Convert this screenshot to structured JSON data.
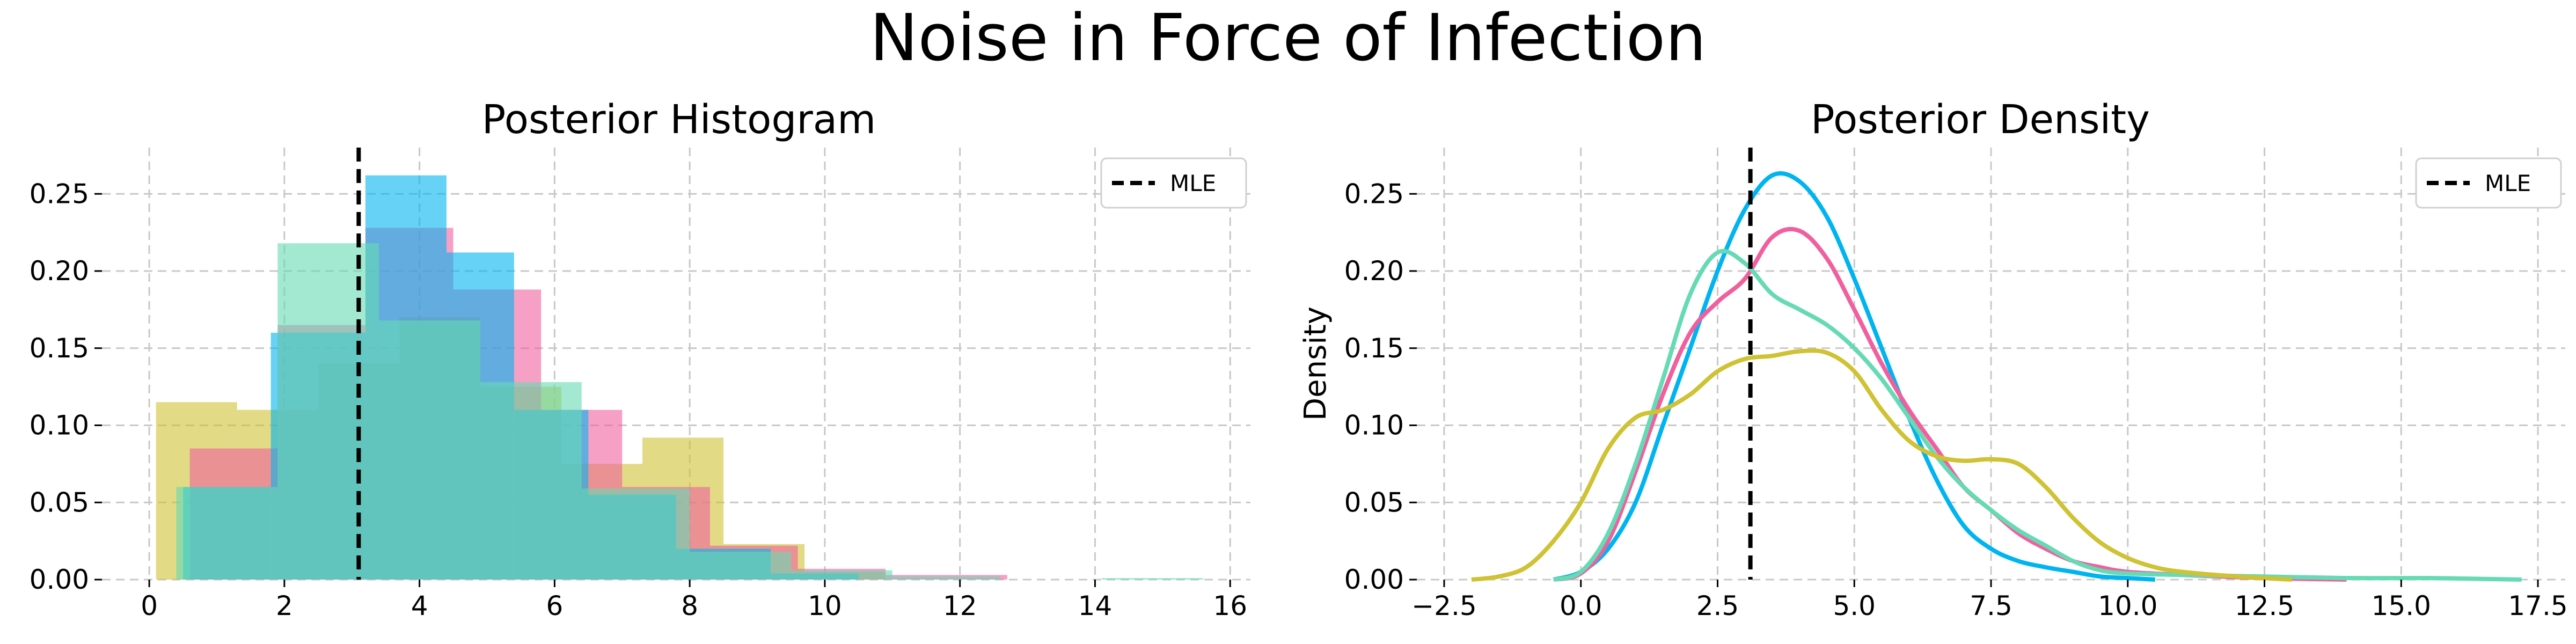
{
  "figure": {
    "title": "Noise in Force of Infection"
  },
  "colors": {
    "blue": "#00b4f0",
    "pink": "#f0609e",
    "mint": "#66dab4",
    "olive": "#cfc233",
    "mle": "#000000"
  },
  "chart_data": [
    {
      "type": "histogram",
      "title": "Posterior Histogram",
      "xlabel": "",
      "ylabel": "",
      "xlim": [
        -0.7,
        16.3
      ],
      "ylim": [
        0,
        0.28
      ],
      "xticks": [
        "0",
        "2",
        "4",
        "6",
        "8",
        "10",
        "12",
        "14",
        "16"
      ],
      "yticks": [
        "0.00",
        "0.05",
        "0.10",
        "0.15",
        "0.20",
        "0.25"
      ],
      "grid": true,
      "legend": {
        "position": "top-right",
        "entries": [
          "MLE"
        ]
      },
      "mle": 3.1,
      "series": [
        {
          "color": "olive",
          "bins": [
            [
              0.1,
              1.3,
              0.115
            ],
            [
              1.3,
              2.5,
              0.11
            ],
            [
              2.5,
              3.7,
              0.14
            ],
            [
              3.7,
              4.9,
              0.17
            ],
            [
              4.9,
              6.1,
              0.125
            ],
            [
              6.1,
              7.3,
              0.075
            ],
            [
              7.3,
              8.5,
              0.092
            ],
            [
              8.5,
              9.7,
              0.023
            ],
            [
              9.7,
              10.9,
              0.005
            ]
          ]
        },
        {
          "color": "pink",
          "bins": [
            [
              0.6,
              1.9,
              0.085
            ],
            [
              1.9,
              3.2,
              0.165
            ],
            [
              3.2,
              4.5,
              0.228
            ],
            [
              4.5,
              5.8,
              0.188
            ],
            [
              5.8,
              7.0,
              0.11
            ],
            [
              7.0,
              8.3,
              0.06
            ],
            [
              8.3,
              9.6,
              0.022
            ],
            [
              9.6,
              10.9,
              0.007
            ],
            [
              10.9,
              12.7,
              0.003
            ]
          ]
        },
        {
          "color": "blue",
          "bins": [
            [
              0.5,
              1.8,
              0.06
            ],
            [
              1.8,
              3.2,
              0.16
            ],
            [
              3.2,
              4.4,
              0.262
            ],
            [
              4.4,
              5.4,
              0.212
            ],
            [
              5.4,
              6.5,
              0.11
            ],
            [
              6.5,
              7.8,
              0.055
            ],
            [
              7.8,
              9.2,
              0.02
            ],
            [
              9.2,
              10.5,
              0.004
            ]
          ]
        },
        {
          "color": "mint",
          "bins": [
            [
              0.4,
              1.9,
              0.06
            ],
            [
              1.9,
              3.4,
              0.218
            ],
            [
              3.4,
              4.9,
              0.168
            ],
            [
              4.9,
              6.4,
              0.128
            ],
            [
              6.4,
              8.0,
              0.059
            ],
            [
              8.0,
              9.5,
              0.018
            ],
            [
              9.5,
              11.0,
              0.006
            ],
            [
              11.0,
              12.6,
              0.002
            ],
            [
              14.1,
              15.6,
              0.001
            ]
          ]
        }
      ]
    },
    {
      "type": "line",
      "title": "Posterior Density",
      "xlabel": "",
      "ylabel": "Density",
      "xlim": [
        -3.0,
        18.0
      ],
      "ylim": [
        0,
        0.28
      ],
      "xticks": [
        "−2.5",
        "0.0",
        "2.5",
        "5.0",
        "7.5",
        "10.0",
        "12.5",
        "15.0",
        "17.5"
      ],
      "yticks": [
        "0.00",
        "0.05",
        "0.10",
        "0.15",
        "0.20",
        "0.25"
      ],
      "grid": true,
      "legend": {
        "position": "top-right",
        "entries": [
          "MLE"
        ]
      },
      "mle": 3.1,
      "series": [
        {
          "color": "blue",
          "points": [
            [
              -0.5,
              0
            ],
            [
              0,
              0.005
            ],
            [
              0.5,
              0.02
            ],
            [
              1,
              0.05
            ],
            [
              1.5,
              0.1
            ],
            [
              2,
              0.15
            ],
            [
              2.5,
              0.2
            ],
            [
              3,
              0.24
            ],
            [
              3.5,
              0.262
            ],
            [
              4,
              0.258
            ],
            [
              4.5,
              0.235
            ],
            [
              5,
              0.195
            ],
            [
              5.5,
              0.15
            ],
            [
              6,
              0.105
            ],
            [
              6.5,
              0.065
            ],
            [
              7,
              0.035
            ],
            [
              7.5,
              0.02
            ],
            [
              8,
              0.012
            ],
            [
              8.5,
              0.008
            ],
            [
              9,
              0.005
            ],
            [
              9.5,
              0.002
            ],
            [
              10,
              0.001
            ],
            [
              10.5,
              0
            ]
          ]
        },
        {
          "color": "pink",
          "points": [
            [
              -0.5,
              0
            ],
            [
              0,
              0.004
            ],
            [
              0.5,
              0.025
            ],
            [
              1,
              0.07
            ],
            [
              1.5,
              0.12
            ],
            [
              2,
              0.16
            ],
            [
              2.5,
              0.18
            ],
            [
              3,
              0.195
            ],
            [
              3.5,
              0.222
            ],
            [
              4,
              0.226
            ],
            [
              4.5,
              0.208
            ],
            [
              5,
              0.175
            ],
            [
              5.5,
              0.14
            ],
            [
              6,
              0.11
            ],
            [
              6.5,
              0.085
            ],
            [
              7,
              0.06
            ],
            [
              7.5,
              0.045
            ],
            [
              8,
              0.03
            ],
            [
              8.5,
              0.02
            ],
            [
              9,
              0.012
            ],
            [
              9.5,
              0.008
            ],
            [
              10,
              0.005
            ],
            [
              11,
              0.003
            ],
            [
              12.5,
              0.001
            ],
            [
              14,
              0
            ]
          ]
        },
        {
          "color": "mint",
          "points": [
            [
              -0.5,
              0
            ],
            [
              0,
              0.005
            ],
            [
              0.5,
              0.03
            ],
            [
              1,
              0.075
            ],
            [
              1.5,
              0.13
            ],
            [
              2,
              0.185
            ],
            [
              2.5,
              0.212
            ],
            [
              3,
              0.205
            ],
            [
              3.5,
              0.185
            ],
            [
              4,
              0.175
            ],
            [
              4.5,
              0.165
            ],
            [
              5,
              0.15
            ],
            [
              5.5,
              0.13
            ],
            [
              6,
              0.105
            ],
            [
              6.5,
              0.08
            ],
            [
              7,
              0.06
            ],
            [
              7.5,
              0.045
            ],
            [
              8,
              0.032
            ],
            [
              8.5,
              0.022
            ],
            [
              9,
              0.012
            ],
            [
              9.5,
              0.006
            ],
            [
              10,
              0.004
            ],
            [
              11,
              0.003
            ],
            [
              12.5,
              0.002
            ],
            [
              14,
              0.001
            ],
            [
              15.5,
              0.001
            ],
            [
              17.2,
              0
            ]
          ]
        },
        {
          "color": "olive",
          "points": [
            [
              -2,
              0
            ],
            [
              -1.5,
              0.002
            ],
            [
              -1,
              0.008
            ],
            [
              -0.5,
              0.025
            ],
            [
              0,
              0.05
            ],
            [
              0.5,
              0.085
            ],
            [
              1,
              0.105
            ],
            [
              1.5,
              0.11
            ],
            [
              2,
              0.12
            ],
            [
              2.5,
              0.135
            ],
            [
              3,
              0.143
            ],
            [
              3.5,
              0.145
            ],
            [
              4,
              0.148
            ],
            [
              4.5,
              0.147
            ],
            [
              5,
              0.135
            ],
            [
              5.5,
              0.11
            ],
            [
              6,
              0.09
            ],
            [
              6.5,
              0.08
            ],
            [
              7,
              0.077
            ],
            [
              7.5,
              0.078
            ],
            [
              8,
              0.075
            ],
            [
              8.5,
              0.06
            ],
            [
              9,
              0.04
            ],
            [
              9.5,
              0.024
            ],
            [
              10,
              0.014
            ],
            [
              10.5,
              0.008
            ],
            [
              11,
              0.005
            ],
            [
              12,
              0.002
            ],
            [
              13,
              0
            ]
          ]
        }
      ]
    }
  ]
}
